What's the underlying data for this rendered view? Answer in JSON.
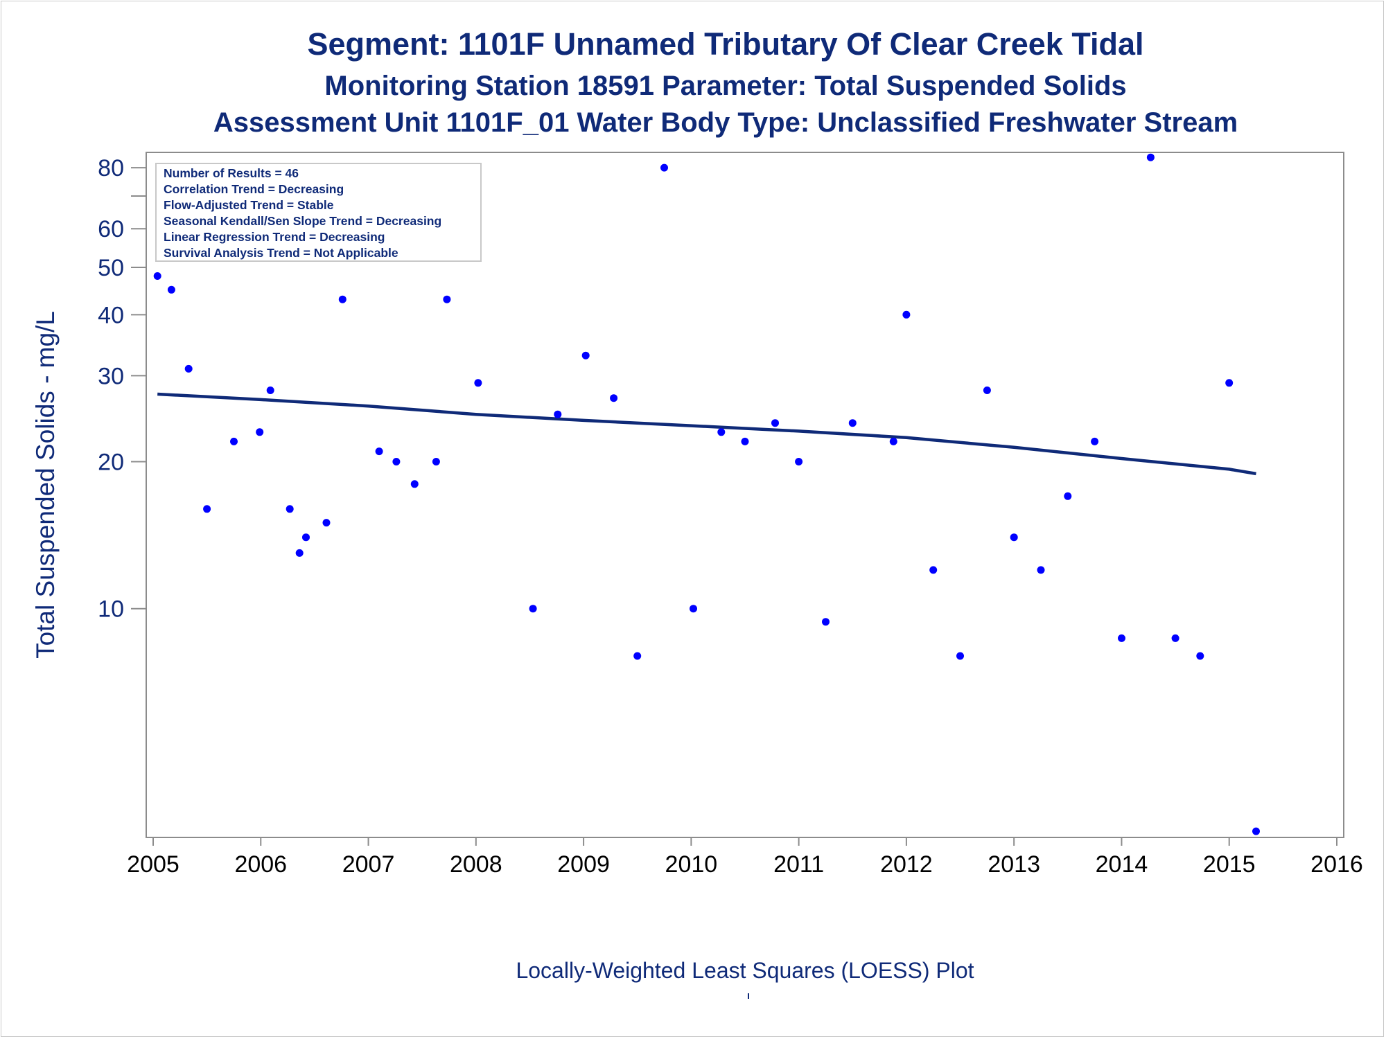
{
  "chart_data": {
    "type": "scatter",
    "title": "Segment: 1101F  Unnamed Tributary Of Clear Creek Tidal",
    "subtitle": "Monitoring Station 18591 Parameter: Total Suspended Solids",
    "subtitle2": "Assessment Unit 1101F_01   Water Body Type: Unclassified Freshwater Stream",
    "ylabel": "Total Suspended Solids - mg/L",
    "xlabel": "Locally-Weighted Least Squares (LOESS) Plot",
    "y_scale": "log",
    "xlim": [
      2005,
      2016
    ],
    "ylim": [
      3.4,
      86
    ],
    "x_ticks": [
      2005,
      2006,
      2007,
      2008,
      2009,
      2010,
      2011,
      2012,
      2013,
      2014,
      2015,
      2016
    ],
    "y_ticks_labeled": [
      10,
      20,
      30,
      40,
      50,
      60,
      80
    ],
    "y_ticks_minor": [
      70
    ],
    "grid": false,
    "legend": "none",
    "stats_box": {
      "placement": "top-left",
      "lines": [
        "Number of Results = 46",
        "Correlation Trend = Decreasing",
        "Flow-Adjusted Trend = Stable",
        "Seasonal Kendall/Sen Slope Trend = Decreasing",
        "Linear Regression Trend = Decreasing",
        "Survival Analysis Trend = Not Applicable"
      ]
    },
    "points": [
      {
        "x": 2005.04,
        "y": 48
      },
      {
        "x": 2005.17,
        "y": 45
      },
      {
        "x": 2005.33,
        "y": 31
      },
      {
        "x": 2005.5,
        "y": 16
      },
      {
        "x": 2005.75,
        "y": 22
      },
      {
        "x": 2005.99,
        "y": 23
      },
      {
        "x": 2006.09,
        "y": 28
      },
      {
        "x": 2006.27,
        "y": 16
      },
      {
        "x": 2006.36,
        "y": 13
      },
      {
        "x": 2006.42,
        "y": 14
      },
      {
        "x": 2006.61,
        "y": 15
      },
      {
        "x": 2006.76,
        "y": 43
      },
      {
        "x": 2007.1,
        "y": 21
      },
      {
        "x": 2007.26,
        "y": 20
      },
      {
        "x": 2007.43,
        "y": 18
      },
      {
        "x": 2007.63,
        "y": 20
      },
      {
        "x": 2007.73,
        "y": 43
      },
      {
        "x": 2008.02,
        "y": 29
      },
      {
        "x": 2008.53,
        "y": 10
      },
      {
        "x": 2008.76,
        "y": 25
      },
      {
        "x": 2009.02,
        "y": 33
      },
      {
        "x": 2009.28,
        "y": 27
      },
      {
        "x": 2009.5,
        "y": 8
      },
      {
        "x": 2009.75,
        "y": 80
      },
      {
        "x": 2010.02,
        "y": 10
      },
      {
        "x": 2010.28,
        "y": 23
      },
      {
        "x": 2010.5,
        "y": 22
      },
      {
        "x": 2010.78,
        "y": 24
      },
      {
        "x": 2011.0,
        "y": 20
      },
      {
        "x": 2011.25,
        "y": 9.4
      },
      {
        "x": 2011.5,
        "y": 24
      },
      {
        "x": 2011.88,
        "y": 22
      },
      {
        "x": 2012.0,
        "y": 40
      },
      {
        "x": 2012.25,
        "y": 12
      },
      {
        "x": 2012.5,
        "y": 8
      },
      {
        "x": 2012.75,
        "y": 28
      },
      {
        "x": 2013.0,
        "y": 14
      },
      {
        "x": 2013.25,
        "y": 12
      },
      {
        "x": 2013.5,
        "y": 17
      },
      {
        "x": 2013.75,
        "y": 22
      },
      {
        "x": 2014.0,
        "y": 8.7
      },
      {
        "x": 2014.27,
        "y": 84
      },
      {
        "x": 2014.5,
        "y": 8.7
      },
      {
        "x": 2014.73,
        "y": 8
      },
      {
        "x": 2015.0,
        "y": 29
      },
      {
        "x": 2015.25,
        "y": 3.5
      }
    ],
    "trend_line": {
      "x": [
        2005.04,
        2006,
        2007,
        2008,
        2009,
        2010,
        2011,
        2012,
        2013,
        2014,
        2015,
        2015.25
      ],
      "y": [
        27.5,
        26.8,
        26.0,
        25.0,
        24.3,
        23.7,
        23.1,
        22.4,
        21.4,
        20.3,
        19.3,
        18.9
      ]
    },
    "colors": {
      "points": "#0000ff",
      "trend_line": "#0f2a78",
      "text": "#0f2a78",
      "axis": "#8c8c8c"
    }
  }
}
